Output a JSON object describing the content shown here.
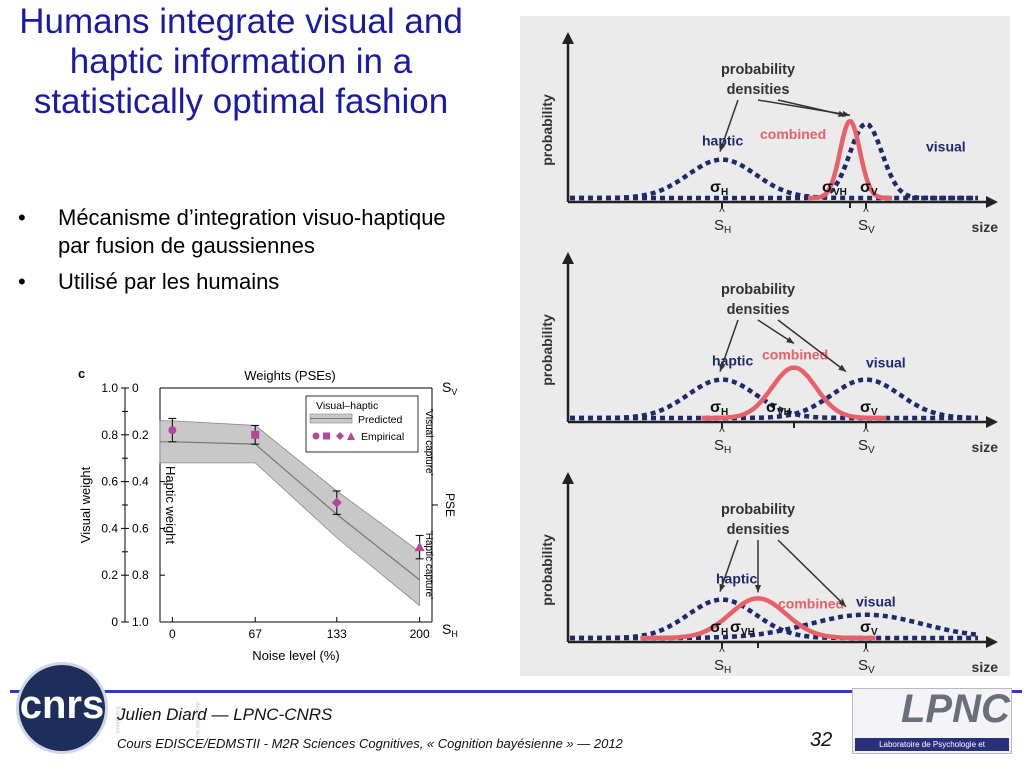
{
  "slide": {
    "title": "Humans integrate visual and haptic information in a statistically optimal fashion",
    "bullets": [
      "Mécanisme d’integration visuo-haptique par fusion de gaussiennes",
      "Utilisé par les humains"
    ],
    "bullet_glyph": "•"
  },
  "figure_c": {
    "panel_letter": "c",
    "top_label": "Weights (PSEs)",
    "sv": "S",
    "sv_sub": "V",
    "sh": "S",
    "sh_sub": "H",
    "right_axis": "PSE",
    "visual_capture": "'Visual capture'",
    "haptic_capture": "'Haptic capture'",
    "left_axis_label": "Visual weight",
    "inner_axis_label": "Haptic weight",
    "x_label": "Noise level (%)",
    "legend_title": "Visual–haptic",
    "legend_predicted": "Predicted",
    "legend_empirical": "Empirical",
    "colors": {
      "band": "#c8c8c8",
      "line": "#777777",
      "marker": "#b9449b"
    }
  },
  "chart_data": {
    "type": "line",
    "x": [
      0,
      67,
      133,
      200
    ],
    "x_ticks": [
      "0",
      "67",
      "133",
      "200"
    ],
    "xlim": [
      -10,
      210
    ],
    "ylim": [
      0,
      1
    ],
    "y_ticks_visual": [
      "1.0",
      "0.8",
      "0.6",
      "0.4",
      "0.2",
      "0"
    ],
    "y_ticks_haptic": [
      "0",
      "0.2",
      "0.4",
      "0.6",
      "0.8",
      "1.0"
    ],
    "xlabel": "Noise level (%)",
    "ylabel": "Visual weight",
    "ylabel2": "Haptic weight",
    "series": [
      {
        "name": "Predicted",
        "x": [
          -10,
          0,
          67,
          133,
          200
        ],
        "y": [
          0.77,
          0.77,
          0.76,
          0.46,
          0.18
        ],
        "band_upper": [
          0.86,
          0.86,
          0.84,
          0.56,
          0.3
        ],
        "band_lower": [
          0.68,
          0.68,
          0.68,
          0.36,
          0.07
        ]
      },
      {
        "name": "Empirical",
        "x": [
          0,
          67,
          133,
          200
        ],
        "y": [
          0.82,
          0.8,
          0.51,
          0.32
        ],
        "err": [
          0.05,
          0.04,
          0.05,
          0.05
        ],
        "markers": [
          "circle",
          "square",
          "diamond",
          "triangle"
        ]
      }
    ]
  },
  "panels": [
    {
      "header": "probability densities",
      "header_line1": "probability",
      "header_line2": "densities",
      "y_axis": "probability",
      "x_axis": "size",
      "haptic": "haptic",
      "visual": "visual",
      "combined": "combined",
      "sigma": "σ",
      "sub_h": "H",
      "sub_v": "V",
      "sub_vh": "VH",
      "s_hat": "S",
      "haptic_mean": 0.36,
      "haptic_sd": 0.085,
      "visual_mean": 0.72,
      "visual_sd": 0.04,
      "combined_mean": 0.68,
      "combined_sd": 0.025
    },
    {
      "header_line1": "probability",
      "header_line2": "densities",
      "y_axis": "probability",
      "x_axis": "size",
      "haptic": "haptic",
      "visual": "visual",
      "combined": "combined",
      "sigma": "σ",
      "sub_h": "H",
      "sub_v": "V",
      "sub_vh": "VH",
      "s_hat": "S",
      "haptic_mean": 0.36,
      "haptic_sd": 0.085,
      "visual_mean": 0.72,
      "visual_sd": 0.085,
      "combined_mean": 0.54,
      "combined_sd": 0.055
    },
    {
      "header_line1": "probability",
      "header_line2": "densities",
      "y_axis": "probability",
      "x_axis": "size",
      "haptic": "haptic",
      "visual": "visual",
      "combined": "combined",
      "sigma": "σ",
      "sub_h": "H",
      "sub_v": "V",
      "sub_vh": "VH",
      "s_hat": "S",
      "haptic_mean": 0.36,
      "haptic_sd": 0.085,
      "visual_mean": 0.72,
      "visual_sd": 0.14,
      "combined_mean": 0.45,
      "combined_sd": 0.07
    }
  ],
  "footer": {
    "logo_left": "cnrs",
    "logo_left_small": "dépasser les frontières",
    "author": "Julien Diard — LPNC-CNRS",
    "course": "Cours EDISCE/EDMSTII - M2R Sciences Cognitives, « Cognition bayésienne » — 2012",
    "page": "32",
    "logo_right": "LPNC",
    "logo_right_sub": "Laboratoire de Psychologie et NeuroCognition"
  }
}
